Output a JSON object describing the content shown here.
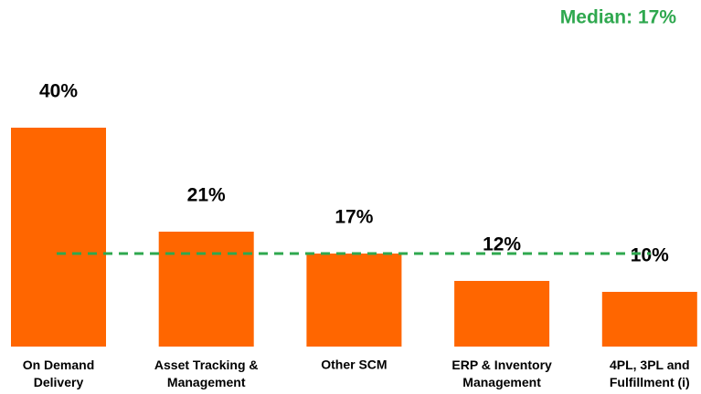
{
  "chart_data": {
    "type": "bar",
    "categories": [
      "On Demand\nDelivery",
      "Asset Tracking &\nManagement",
      "Other SCM",
      "ERP & Inventory\nManagement",
      "4PL, 3PL and\nFulfillment (i)"
    ],
    "values": [
      40,
      21,
      17,
      12,
      10
    ],
    "value_labels": [
      "40%",
      "21%",
      "17%",
      "12%",
      "10%"
    ],
    "color": "#ff6600",
    "median": {
      "value": 17,
      "label": "Median: 17%",
      "color": "#2fa84f"
    }
  }
}
